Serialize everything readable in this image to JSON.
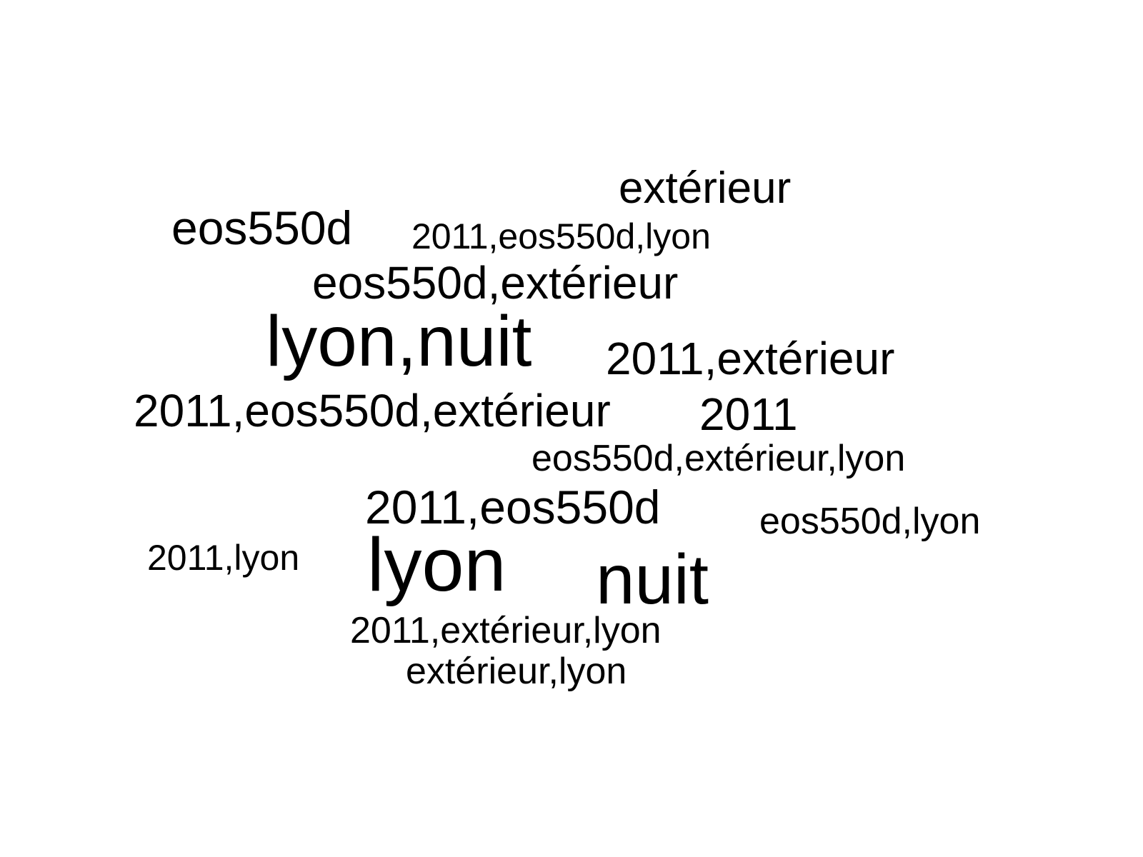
{
  "background_color": "#ffffff",
  "text_color": "#000000",
  "words": [
    "extérieur",
    "eos550d",
    "2011,eos550d,lyon",
    "eos550d,extérieur",
    "lyon,nuit",
    "2011,extérieur",
    "2011,eos550d,extérieur",
    "2011",
    "eos550d,extérieur,lyon",
    "2011,eos550d",
    "eos550d,lyon",
    "2011,lyon",
    "lyon",
    "nuit",
    "2011,extérieur,lyon",
    "extérieur,lyon"
  ]
}
